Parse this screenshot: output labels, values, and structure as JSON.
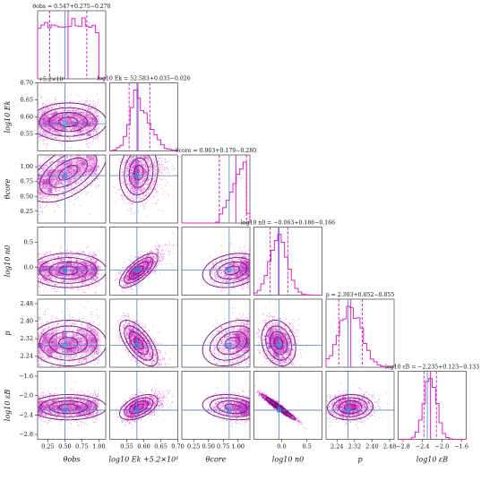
{
  "chart_data": {
    "type": "corner",
    "parameters": [
      {
        "key": "theta_obs",
        "axis_label": "θobs",
        "title": "θobs = 0.547+0.275−0.270",
        "range": [
          0.1,
          1.1
        ],
        "ticks": [
          0.25,
          0.5,
          0.75,
          1.0
        ],
        "tick_labels": [
          "0.25",
          "0.50",
          "0.75",
          "1.00"
        ],
        "median": 0.547,
        "q16": 0.277,
        "q84": 0.822,
        "truth": 0.5,
        "mean": 0.55,
        "sd": 0.28,
        "dist": "tophat"
      },
      {
        "key": "log10_Ek",
        "axis_label": "log10 Ek",
        "axis_offset": "+5.2×10¹",
        "title": "log10 Ek = 52.583+0.035−0.026",
        "range": [
          52.5,
          52.7
        ],
        "ticks": [
          52.55,
          52.6,
          52.65,
          52.7
        ],
        "tick_labels": [
          "0.55",
          "0.60",
          "0.65",
          "0.70"
        ],
        "median": 52.583,
        "q16": 52.557,
        "q84": 52.618,
        "truth": 52.58,
        "mean": 52.585,
        "sd": 0.028,
        "dist": "skew"
      },
      {
        "key": "theta_core",
        "axis_label": "θcore",
        "title": "θcore = 0.963+0.179−0.280",
        "range": [
          0.05,
          1.2
        ],
        "ticks": [
          0.25,
          0.5,
          0.75,
          1.0
        ],
        "tick_labels": [
          "0.25",
          "0.50",
          "0.75",
          "1.00"
        ],
        "median": 0.963,
        "q16": 0.683,
        "q84": 1.142,
        "truth": 0.85,
        "mean": 0.9,
        "sd": 0.25,
        "dist": "ramp"
      },
      {
        "key": "log10_n0",
        "axis_label": "log10 n0",
        "title": "log10 n0 = −0.063+0.186−0.166",
        "range": [
          -0.55,
          0.8
        ],
        "ticks": [
          0.0,
          0.5
        ],
        "tick_labels": [
          "0.0",
          "0.5"
        ],
        "median": -0.063,
        "q16": -0.229,
        "q84": 0.123,
        "truth": -0.05,
        "mean": -0.06,
        "sd": 0.17,
        "dist": "normal"
      },
      {
        "key": "p",
        "axis_label": "p",
        "title": "p = 2.303+0.052−0.055",
        "range": [
          2.19,
          2.5
        ],
        "ticks": [
          2.24,
          2.32,
          2.4,
          2.48
        ],
        "tick_labels": [
          "2.24",
          "2.32",
          "2.40",
          "2.48"
        ],
        "median": 2.303,
        "q16": 2.248,
        "q84": 2.355,
        "truth": 2.29,
        "mean": 2.3,
        "sd": 0.052,
        "dist": "normal"
      },
      {
        "key": "log10_eB",
        "axis_label": "log10 εB",
        "title": "log10 εB = −2.235+0.123−0.133",
        "range": [
          -2.9,
          -1.5
        ],
        "ticks": [
          -2.8,
          -2.4,
          -2.0,
          -1.6
        ],
        "tick_labels": [
          "−2.8",
          "−2.4",
          "−2.0",
          "−1.6"
        ],
        "median": -2.235,
        "q16": -2.368,
        "q84": -2.112,
        "truth": -2.3,
        "mean": -2.24,
        "sd": 0.13,
        "dist": "normal"
      }
    ],
    "correlations": {
      "1_0": 0.0,
      "2_0": 0.55,
      "2_1": 0.1,
      "3_0": 0.0,
      "3_1": 0.72,
      "3_2": 0.25,
      "4_0": 0.0,
      "4_1": -0.65,
      "4_2": 0.3,
      "4_3": -0.2,
      "5_0": 0.0,
      "5_1": 0.5,
      "5_2": -0.2,
      "5_3": -0.97,
      "5_4": 0.05
    },
    "histogram_type": "step",
    "quantiles": [
      0.16,
      0.5,
      0.84
    ],
    "contour_levels": 4,
    "colors": {
      "samples": "#d726c9",
      "density_high": "#b01ab0",
      "contours": "#7a0f7a",
      "truth_line": "#4f7fcf",
      "truth_marker": "#2a9ad6"
    }
  }
}
